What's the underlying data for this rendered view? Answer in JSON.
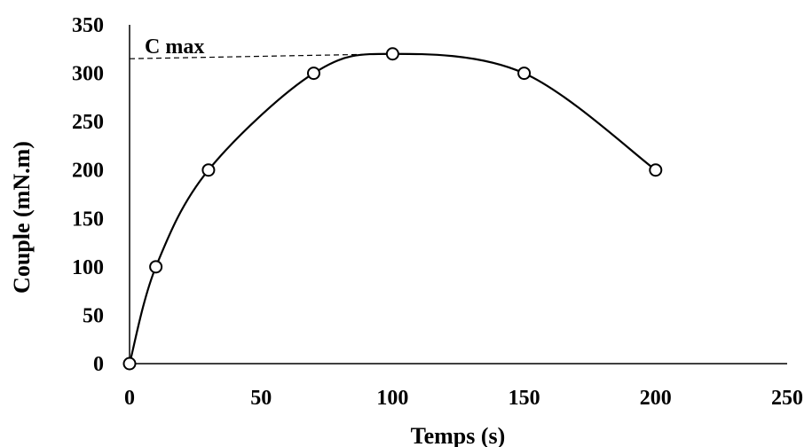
{
  "chart_data": {
    "type": "scatter",
    "title": "",
    "xlabel": "Temps (s)",
    "ylabel": "Couple (mN.m)",
    "xlim": [
      0,
      250
    ],
    "ylim": [
      0,
      350
    ],
    "xticks": [
      0,
      50,
      100,
      150,
      200,
      250
    ],
    "yticks": [
      0,
      50,
      100,
      150,
      200,
      250,
      300,
      350
    ],
    "xtick_labels": [
      "0",
      "50",
      "100",
      "150",
      "200",
      "250"
    ],
    "ytick_labels": [
      "0",
      "50",
      "100",
      "150",
      "200",
      "250",
      "300",
      "350"
    ],
    "grid": false,
    "legend": "none",
    "series": [
      {
        "x": [
          0,
          10,
          30,
          70,
          100,
          150,
          200
        ],
        "y": [
          0,
          100,
          200,
          300,
          320,
          300,
          200
        ],
        "marker": "open-circle",
        "line": "smooth",
        "color": "#000000"
      }
    ],
    "annotations": [
      {
        "text": "C max",
        "reference_line": {
          "style": "dashed",
          "x_start": 0,
          "x_end": 100,
          "y_start": 315,
          "y_end": 320
        }
      }
    ]
  }
}
